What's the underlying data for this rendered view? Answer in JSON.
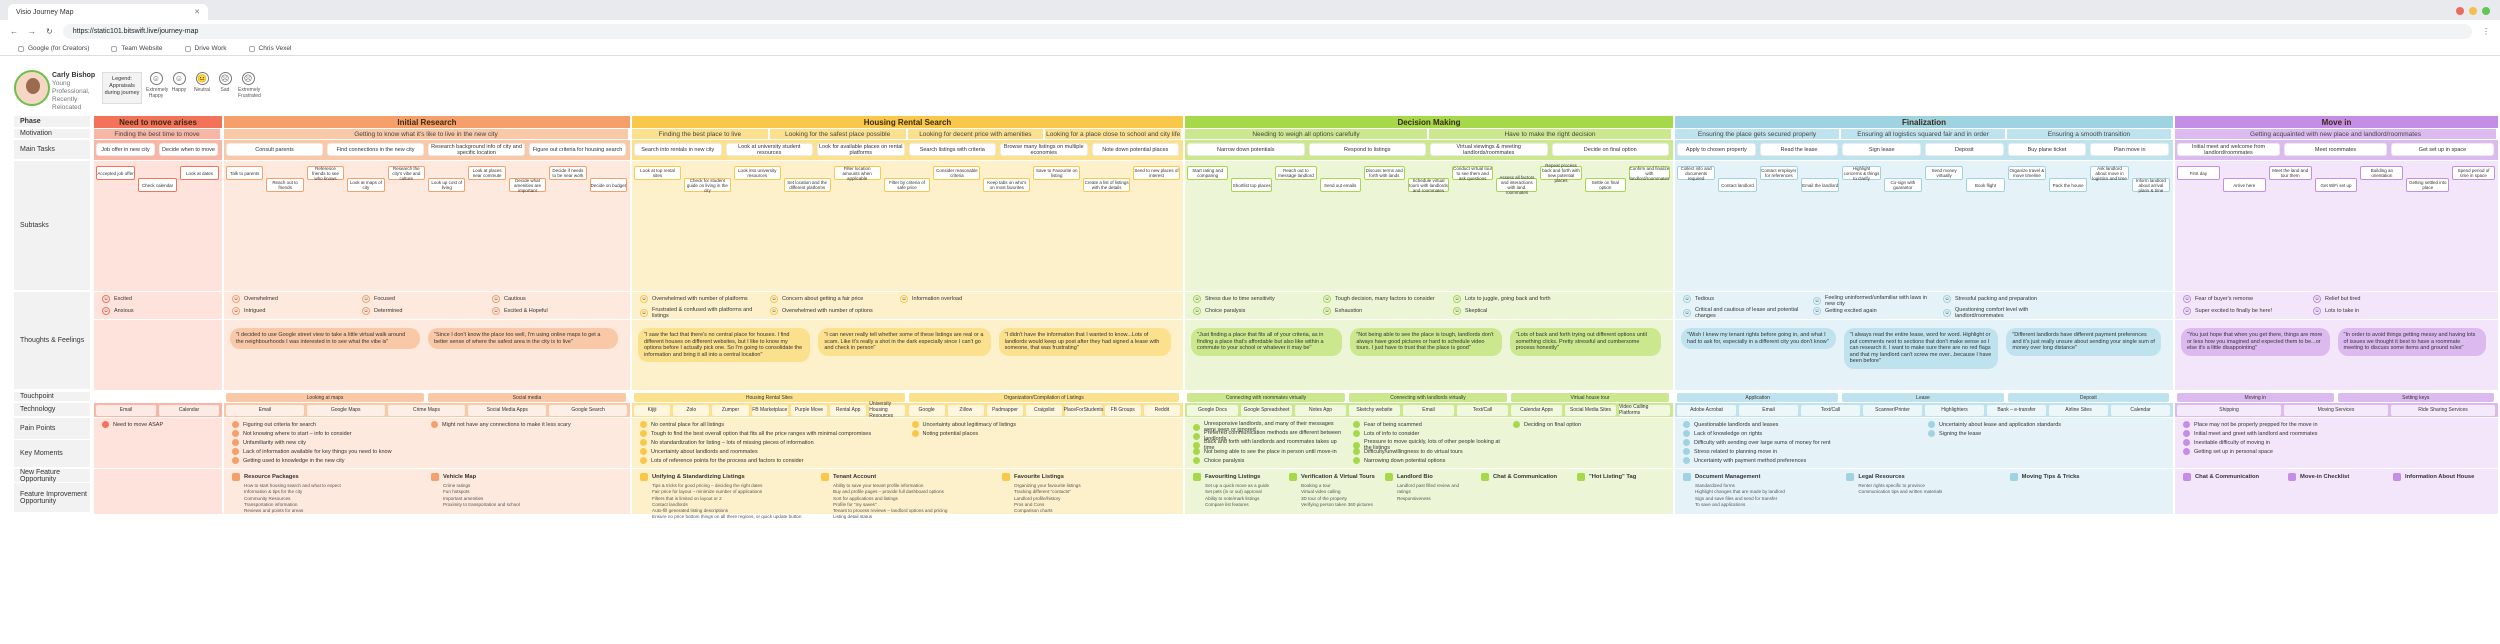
{
  "browser": {
    "tab_title": "Visio Journey Map",
    "url": "https://static101.bitswift.live/journey-map",
    "bookmarks": [
      "Google (for Creators)",
      "Team Website",
      "Drive Work",
      "Chris Vexel"
    ]
  },
  "persona": {
    "name": "Carly Bishop",
    "role": "Young Professional, Recently Relocated",
    "legend_title": "Legend: Appraisals during journey",
    "emotions": [
      "Extremely Happy",
      "Happy",
      "Neutral",
      "Sad",
      "Extremely Frustrated"
    ]
  },
  "row_labels": {
    "phase": "Phase",
    "motivation": "Motivation",
    "main_tasks": "Main Tasks",
    "subtasks": "Subtasks",
    "thoughts": "Thoughts & Feelings",
    "touchpoint": "Touchpoint",
    "technology": "Technology",
    "pain_points": "Pain Points",
    "key_moments": "Key Moments",
    "new_feature": "New Feature Opportunity",
    "feature_improvement": "Feature Improvement Opportunity"
  },
  "colors": {
    "p1": "#f2735a",
    "p2": "#f5a06a",
    "p3": "#f9c84a",
    "p4": "#a5d94a",
    "p5": "#9fd3e2",
    "p6": "#c58ee6"
  },
  "phases": [
    {
      "name": "Need to move arises",
      "motivations": [
        "Finding the best time to move"
      ],
      "tasks": [
        "Job offer in new city",
        "Decide when to move"
      ],
      "subtasks": [
        "Accepted job offer",
        "Check calendar",
        "Look at dates"
      ],
      "feelings": [
        "Excited",
        "Anxious"
      ],
      "quotes": [],
      "touchpoints": [],
      "tech": [
        "Email",
        "Calendar"
      ],
      "pains": [
        "Need to move ASAP"
      ],
      "opps": []
    },
    {
      "name": "Initial Research",
      "motivations": [
        "Getting to know what it's like to live in the new city"
      ],
      "tasks": [
        "Consult parents",
        "Find connections in the new city",
        "Research background info of city and specific location",
        "Figure out criteria for housing search"
      ],
      "subtasks": [
        "Talk to parents",
        "Reach out to friends",
        "Reference friends to see who knows",
        "Look at maps of city",
        "Research the city's vibe and culture",
        "Look up cost of living",
        "Look at places near commute",
        "Decide what amenities are important",
        "Decide if needs to be near work",
        "Decide on budget"
      ],
      "feelings": [
        "Overwhelmed",
        "Intrigued",
        "Focused",
        "Determined",
        "Cautious",
        "Excited & Hopeful"
      ],
      "quotes": [
        "\"I decided to use Google street view to take a little virtual walk around the neighbourhoods I was interested in to see what the vibe is\"",
        "\"Since I don't know the place too well, I'm using online maps to get a better sense of where the safest area in the city is to live\""
      ],
      "touchpoints": [
        "Looking at maps",
        "Social media"
      ],
      "tech": [
        "Email",
        "Google Maps",
        "Crime Maps",
        "Social Media Apps",
        "Google Search"
      ],
      "pains": [
        "Figuring out criteria for search",
        "Not knowing where to start – info to consider",
        "Unfamiliarity with new city",
        "Lack of information available for key things you need to know",
        "Getting used to knowledge in the new city",
        "Might not have any connections to make it less scary"
      ],
      "opps": [
        {
          "title": "Resource Packages",
          "items": [
            "How to start housing search and what to expect",
            "Information & tips for the city",
            "Community Resources",
            "Transportation information",
            "Reviews and points for areas"
          ]
        },
        {
          "title": "Vehicle Map",
          "items": [
            "Crime ratings",
            "Fun hotspots",
            "Important amenities",
            "Proximity to transportation and school"
          ]
        }
      ]
    },
    {
      "name": "Housing Rental Search",
      "motivations": [
        "Finding the best place to live",
        "Looking for the safest place possible",
        "Looking for decent price with amenities",
        "Looking for a place close to school and city life"
      ],
      "tasks": [
        "Search into rentals in new city",
        "Look at university student resources",
        "Look for available places on rental platforms",
        "Search listings with criteria",
        "Browse many listings on multiple economies",
        "Note down potential places"
      ],
      "subtasks": [
        "Look at top rental sites",
        "Check for student guide on living in the city",
        "Look into university resources",
        "Set location and the different platforms",
        "Filter location amounts when applicable",
        "Filter by criteria of safe price",
        "Consider reasonable criteria",
        "Keep tabs on who's on most favorites",
        "Save to Favourite on listing",
        "Create a list of listings with the details",
        "Send to new places of interest"
      ],
      "feelings": [
        "Overwhelmed with number of platforms",
        "Frustrated & confused with platforms and listings",
        "Concern about getting a fair price",
        "Overwhelmed with number of options",
        "Information overload"
      ],
      "quotes": [
        "\"I saw the fact that there's no central place for houses. I find different houses on different websites, but I like to know my options before I actually pick one. So I'm going to consolidate the information and bring it all into a central location\"",
        "\"I can never really tell whether some of these listings are real or a scam. Like it's really a shot in the dark especially since I can't go and check in person\"",
        "\"I didn't have the information that I wanted to know...Lots of landlords would keep up post after they had signed a lease with someone, that was frustrating\""
      ],
      "touchpoints": [
        "Housing Rental Sites",
        "Organization/Compilation of Listings"
      ],
      "tech": [
        "Kijiji",
        "Zolo",
        "Zumper",
        "FB Marketplace",
        "Purple Move",
        "Rental App",
        "University Housing Resources",
        "Google",
        "Zillow",
        "Padmapper",
        "Craigslist",
        "PlaceForStudents",
        "FB Groups",
        "Reddit"
      ],
      "pains": [
        "No central place for all listings",
        "Tough to find the best overall option that fits all the price ranges with minimal compromises",
        "No standardization for listing – lots of missing pieces of information",
        "Uncertainty about landlords and roommates",
        "Lots of reference points for the process and factors to consider",
        "Uncertainty about legitimacy of listings",
        "Noting potential places"
      ],
      "opps": [
        {
          "title": "Unifying & Standardizing Listings",
          "items": [
            "Tips & tricks for good pricing – deciding the right dates",
            "Fair price for layout – minimize number of applications",
            "Filters that is limited on layout or 2",
            "Contact landlords",
            "Auto-fill generated listing descriptions",
            "Ensure no price bottom things on all there regions, or quick update button"
          ]
        },
        {
          "title": "Tenant Account",
          "items": [
            "Ability to save your tenant profile information",
            "Buy and profile pages – provide full dashboard options",
            "Sort for applications and listings",
            "Profile for \"my saves\"",
            "Tenant to process reviews – landlord options and pricing",
            "Listing detail status"
          ]
        },
        {
          "title": "Favourite Listings",
          "items": [
            "Organizing your favourite listings",
            "Tracking different \"contacts\"",
            "Landlord profile/history",
            "Pros and Cons",
            "Comparison charts"
          ]
        }
      ]
    },
    {
      "name": "Decision Making",
      "motivations": [
        "Needing to weigh all options carefully",
        "Have to make the right decision"
      ],
      "tasks": [
        "Narrow down potentials",
        "Respond to listings",
        "Virtual viewings & meeting landlords/roommates",
        "Decide on final option"
      ],
      "subtasks": [
        "Start rating and comparing",
        "Shortlist top places",
        "Reach out to message landlord",
        "Send out emails",
        "Discuss terms and forth with lands",
        "Schedule virtual tours with landlords and roommates",
        "Conduct virtual tour to see them and ask questions",
        "Assess all factors and interactions with land. roommates",
        "Repeat process back and forth with new potential places",
        "Settle on final option",
        "Confirm and finalize with landlord/roommates"
      ],
      "feelings": [
        "Stress due to time sensitivity",
        "Choice paralysis",
        "Tough decision, many factors to consider",
        "Exhaustion",
        "Lots to juggle, going back and forth",
        "Skeptical"
      ],
      "quotes": [
        "\"Just finding a place that fits all of your criteria, as in finding a place that's affordable but also like within a commute to your school or whatever it may be\"",
        "\"Not being able to see the place is tough, landlords don't always have good pictures or hard to schedule video tours. I just have to trust that the place is good\"",
        "\"Lots of back and forth trying out different options until something clicks. Pretty stressful and cumbersome process honestly\""
      ],
      "touchpoints": [
        "Connecting with roommates virtually",
        "Connecting with landlords virtually",
        "Virtual house tour"
      ],
      "tech": [
        "Google Docs",
        "Google Spreadsheet",
        "Notes App",
        "Sketchy website",
        "Email",
        "Text/Call",
        "Calendar Apps",
        "Social Media Sites",
        "Video Calling Platforms"
      ],
      "pains": [
        "Unresponsive landlords, and many of their messages were seen or ignored",
        "Preferred communication methods are different between landlords",
        "Back and forth with landlords and roommates takes up time",
        "Not being able to see the place in person until move-in",
        "Choice paralysis",
        "Fear of being scammed",
        "Lots of info to consider",
        "Pressure to move quickly, lots of other people looking at the listings",
        "Difficulty/unwillingness to do virtual tours",
        "Narrowing down potential options",
        "Deciding on final option"
      ],
      "opps": [
        {
          "title": "Favouriting Listings",
          "items": [
            "Set up a quick move as a guide",
            "Set pets (in or out) approval",
            "Ability to note/mark listings",
            "Compare list features"
          ]
        },
        {
          "title": "Verification & Virtual Tours",
          "items": [
            "Booking a tour",
            "Virtual video calling",
            "3D tour of the property",
            "Verifying person taken 360 pictures"
          ]
        },
        {
          "title": "Landlord Bio",
          "items": [
            "Landlord past filled review and ratings",
            "Responsiveness"
          ]
        },
        {
          "title": "Chat & Communication",
          "items": []
        },
        {
          "title": "\"Hot Listing\" Tag",
          "items": []
        }
      ]
    },
    {
      "name": "Finalization",
      "motivations": [
        "Ensuring the place gets secured properly",
        "Ensuring all logistics squared fair and in order",
        "Ensuring a smooth transition"
      ],
      "tasks": [
        "Apply to chosen property",
        "Read the lease",
        "Sign lease",
        "Deposit",
        "Buy plane ticket",
        "Plan move in"
      ],
      "subtasks": [
        "Collect info and documents required",
        "Contact landlord",
        "Contact employer for references",
        "Email the landlord",
        "Highlight concerns & things to clarify",
        "Co-sign with guarantor",
        "Send money virtually",
        "Book flight",
        "Organize travel & move timeline",
        "Pack the house",
        "Ask landlord about move in logistics and time",
        "Inform landlord about arrival plans & time"
      ],
      "feelings": [
        "Tedious",
        "Critical and cautious of lease and potential changes",
        "Feeling uninformed/unfamiliar with laws in new city",
        "Getting excited again",
        "Stressful packing and preparation",
        "Questioning comfort level with landlord/roommates"
      ],
      "quotes": [
        "\"Wish I knew my tenant rights before going in, and what I had to ask for, especially in a different city you don't know\"",
        "\"I always read the entire lease, word for word. Highlight or put comments next to sections that don't make sense so I can research it. I want to make sure there are no red flags and that my landlord can't screw me over...because I have been before\"",
        "\"Different landlords have different payment preferences and it's just really unsure about sending your single sum of money over long distance\""
      ],
      "touchpoints": [
        "Application",
        "Lease",
        "Deposit"
      ],
      "tech": [
        "Adobe Acrobat",
        "Email",
        "Text/Call",
        "Scanner/Printer",
        "Highlighters",
        "Bank – e-transfer",
        "Airline Sites",
        "Calendar"
      ],
      "pains": [
        "Questionable landlords and leases",
        "Lack of knowledge on rights",
        "Difficulty with sending over large sums of money for rent",
        "Stress related to planning move in",
        "Uncertainty with payment method preferences",
        "Uncertainty about lease and application standards",
        "Signing the lease"
      ],
      "opps": [
        {
          "title": "Document Management",
          "items": [
            "Standardized forms",
            "Highlight changes that are made by landlord",
            "Sign and save files and send for transfer",
            "To save and applications"
          ]
        },
        {
          "title": "Legal Resources",
          "items": [
            "Renter rights specific to province",
            "Communication tips and written materials"
          ]
        },
        {
          "title": "Moving Tips & Tricks",
          "items": []
        }
      ]
    },
    {
      "name": "Move in",
      "motivations": [
        "Getting acquainted with new place and landlord/roommates"
      ],
      "tasks": [
        "Initial meet and welcome from landlord/roommates",
        "Meet roommates",
        "Get set up in space"
      ],
      "subtasks": [
        "First day",
        "Arrive here",
        "Meet the land and tour them",
        "Get WiFi set up",
        "Building an orientation",
        "Getting settled into place",
        "Spend period of time in space"
      ],
      "feelings": [
        "Fear of buyer's remorse",
        "Super excited to finally be here!",
        "Relief but tired",
        "Lots to take in"
      ],
      "quotes": [
        "\"You just hope that when you get there, things are more or less how you imagined and expected them to be...or else it's a little disappointing\"",
        "\"In order to avoid things getting messy and having lots of issues we thought it best to have a roommate meeting to discuss some items and ground rules\""
      ],
      "touchpoints": [
        "Moving in",
        "Setting keys"
      ],
      "tech": [
        "Shipping",
        "Moving Services",
        "Ride Sharing Services"
      ],
      "pains": [
        "Place may not be properly prepped for the move in",
        "Initial meet and greet with landlord and roommates",
        "Inevitable difficulty of moving in",
        "Getting set up in personal space"
      ],
      "opps": [
        {
          "title": "Chat & Communication",
          "items": []
        },
        {
          "title": "Move-in Checklist",
          "items": []
        },
        {
          "title": "Information About House",
          "items": []
        }
      ]
    }
  ]
}
